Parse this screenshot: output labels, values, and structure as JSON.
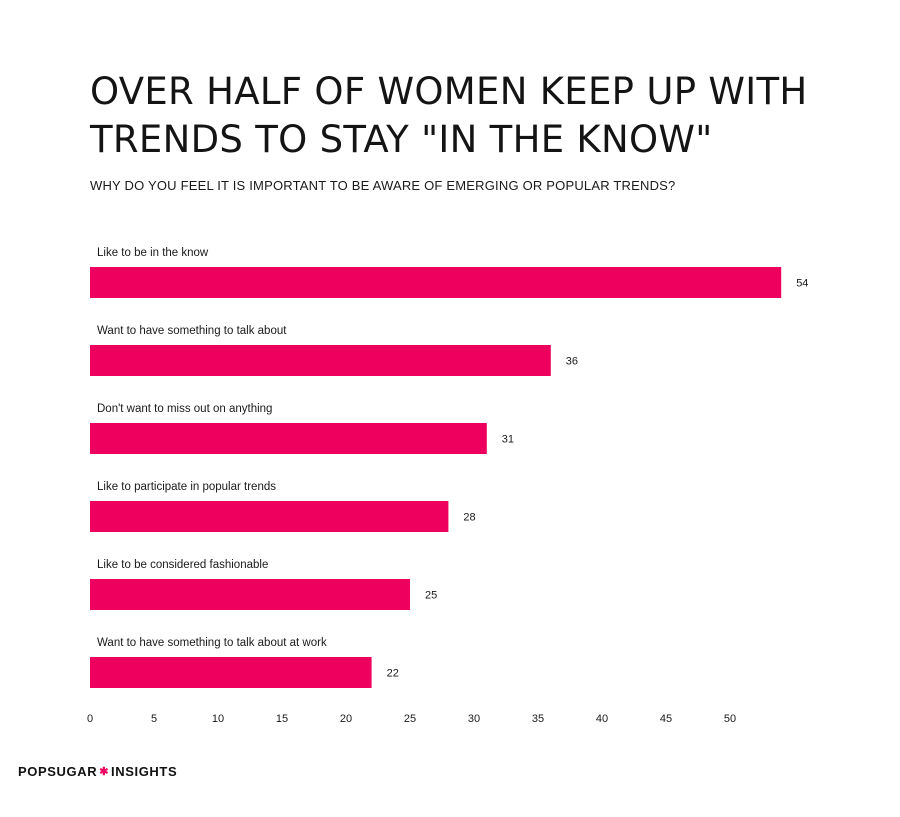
{
  "header": {
    "title_line1": "OVER HALF OF WOMEN KEEP UP WITH",
    "title_line2": "TRENDS TO STAY \"IN THE KNOW\"",
    "subtitle": "WHY DO YOU FEEL IT IS IMPORTANT TO BE AWARE OF EMERGING OR POPULAR TRENDS?"
  },
  "chart_data": {
    "type": "bar",
    "orientation": "horizontal",
    "title": "OVER HALF OF WOMEN KEEP UP WITH TRENDS TO STAY \"IN THE KNOW\"",
    "subtitle": "WHY DO YOU FEEL IT IS IMPORTANT TO BE AWARE OF EMERGING OR POPULAR TRENDS?",
    "categories": [
      "Like to be in the know",
      "Want to have something to talk about",
      "Don't want to miss out on anything",
      "Like to participate in popular trends",
      "Like to be considered fashionable",
      "Want to have something to talk about at work"
    ],
    "values": [
      54,
      36,
      31,
      28,
      25,
      22
    ],
    "x_ticks": [
      0,
      5,
      10,
      15,
      20,
      25,
      30,
      35,
      40,
      45,
      50
    ],
    "xlim": [
      0,
      54
    ],
    "xlabel": "",
    "ylabel": "",
    "grid": false,
    "legend": "none",
    "bar_color": "#ee005f"
  },
  "brand": {
    "left": "POPSUGAR",
    "right": "INSIGHTS",
    "star_color": "#ee005f"
  }
}
